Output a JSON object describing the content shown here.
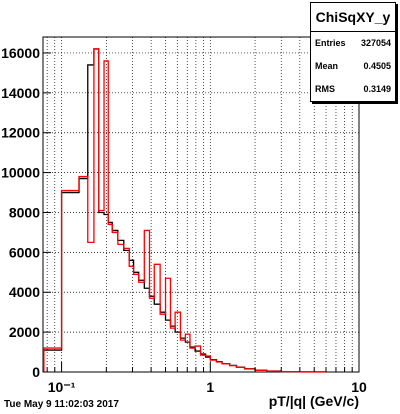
{
  "stats": {
    "title": "ChiSqXY_y",
    "rows": [
      {
        "label": "Entries",
        "value": "327054"
      },
      {
        "label": "Mean",
        "value": "0.4505"
      },
      {
        "label": "RMS",
        "value": "0.3149"
      }
    ]
  },
  "timestamp": "Tue May  9 11:02:03 2017",
  "chart_data": {
    "type": "bar",
    "histogram_style": "step",
    "xlabel": "pT/|q| (GeV/c)",
    "ylabel": "",
    "xscale": "log",
    "xlim": [
      0.075,
      10
    ],
    "ylim": [
      0,
      16800
    ],
    "grid": true,
    "x_tick_labels": [
      {
        "value": 0.1,
        "label": "10⁻¹"
      },
      {
        "value": 1,
        "label": "1"
      },
      {
        "value": 10,
        "label": "10"
      }
    ],
    "y_tick_labels": [
      "0",
      "2000",
      "4000",
      "6000",
      "8000",
      "10000",
      "12000",
      "14000",
      "16000"
    ],
    "y_ticks": [
      0,
      2000,
      4000,
      6000,
      8000,
      10000,
      12000,
      14000,
      16000
    ],
    "bin_edges": [
      0.076,
      0.1,
      0.131,
      0.15,
      0.165,
      0.178,
      0.193,
      0.206,
      0.219,
      0.239,
      0.262,
      0.285,
      0.305,
      0.33,
      0.36,
      0.39,
      0.42,
      0.46,
      0.5,
      0.54,
      0.58,
      0.63,
      0.68,
      0.73,
      0.79,
      0.86,
      0.93,
      1.0,
      1.1,
      1.2,
      1.35,
      1.5,
      1.7,
      2.0,
      2.4,
      3.0,
      4.0,
      6.0
    ],
    "series": [
      {
        "color": "#000000",
        "values": [
          1100,
          9000,
          9700,
          15400,
          16200,
          8000,
          7900,
          7500,
          7100,
          6600,
          6100,
          5600,
          5000,
          4600,
          4200,
          3800,
          3400,
          3000,
          2600,
          2300,
          2000,
          1700,
          1500,
          1250,
          1050,
          900,
          750,
          620,
          520,
          420,
          330,
          240,
          160,
          90,
          50,
          20,
          5
        ]
      },
      {
        "color": "#ff0000",
        "values": [
          1200,
          9100,
          9800,
          6500,
          16200,
          8100,
          15600,
          7400,
          7000,
          6400,
          6200,
          5300,
          4900,
          4500,
          7100,
          3700,
          5400,
          2900,
          4700,
          2200,
          3000,
          1600,
          1900,
          1200,
          1300,
          850,
          800,
          600,
          500,
          410,
          320,
          230,
          150,
          85,
          45,
          18,
          4
        ]
      }
    ]
  }
}
